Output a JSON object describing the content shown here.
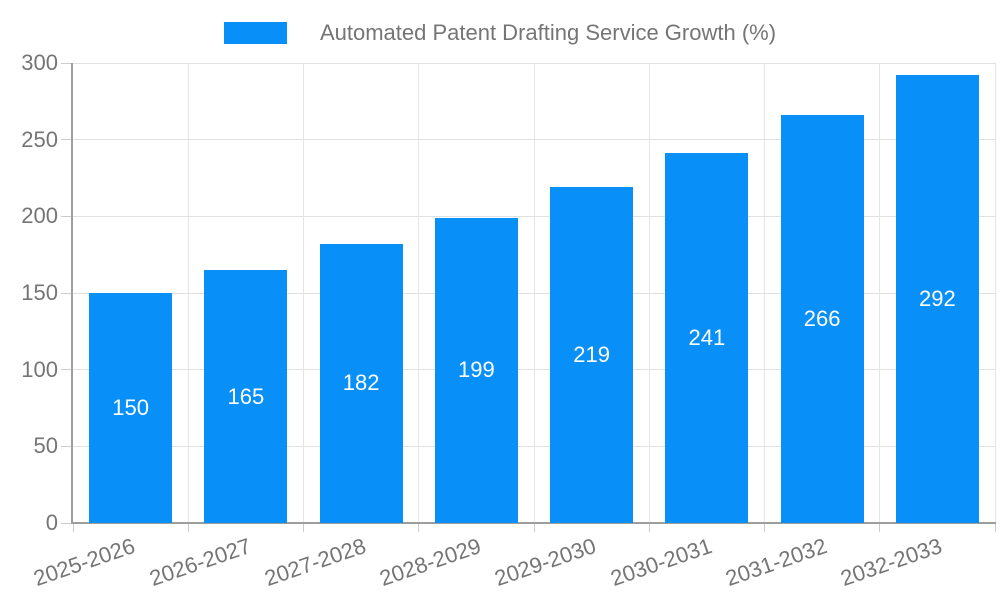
{
  "legend": {
    "label": "Automated Patent Drafting Service Growth (%)"
  },
  "chart_data": {
    "type": "bar",
    "title": "Automated Patent Drafting Service Growth (%)",
    "categories": [
      "2025-2026",
      "2026-2027",
      "2027-2028",
      "2028-2029",
      "2029-2030",
      "2030-2031",
      "2031-2032",
      "2032-2033"
    ],
    "values": [
      150,
      165,
      182,
      199,
      219,
      241,
      266,
      292
    ],
    "xlabel": "",
    "ylabel": "",
    "ylim": [
      0,
      300
    ],
    "y_ticks": [
      0,
      50,
      100,
      150,
      200,
      250,
      300
    ],
    "grid": true,
    "legend_position": "top-center",
    "bar_color": "#0890F8",
    "value_label_color": "#FFFFFF",
    "axis_text_color": "#757575"
  }
}
